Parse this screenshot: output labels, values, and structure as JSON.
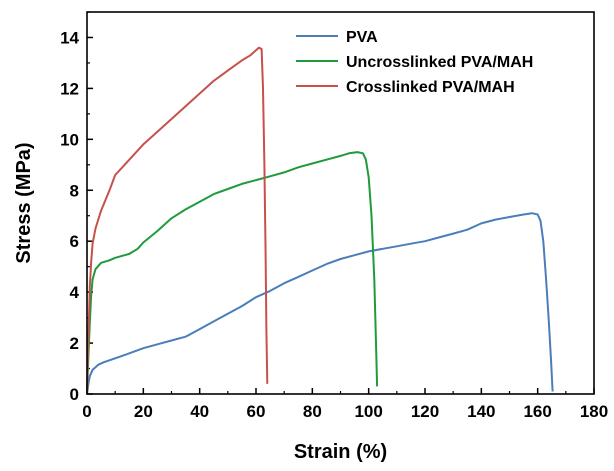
{
  "chart_data": {
    "type": "line",
    "xlabel": "Strain (%)",
    "ylabel": "Stress (MPa)",
    "xlim": [
      0,
      180
    ],
    "ylim": [
      0,
      15
    ],
    "xticks": [
      "0",
      "20",
      "40",
      "60",
      "80",
      "100",
      "120",
      "140",
      "160",
      "180"
    ],
    "yticks": [
      "0",
      "2",
      "4",
      "6",
      "8",
      "10",
      "12",
      "14"
    ],
    "grid": false,
    "legend_position": "top-right",
    "series": [
      {
        "name": "PVA",
        "color": "#4a7ebb",
        "points": [
          [
            0,
            0
          ],
          [
            0.5,
            0.4
          ],
          [
            1,
            0.7
          ],
          [
            2,
            0.95
          ],
          [
            4,
            1.15
          ],
          [
            6,
            1.25
          ],
          [
            10,
            1.4
          ],
          [
            15,
            1.6
          ],
          [
            20,
            1.8
          ],
          [
            25,
            1.95
          ],
          [
            30,
            2.1
          ],
          [
            35,
            2.25
          ],
          [
            40,
            2.55
          ],
          [
            45,
            2.85
          ],
          [
            50,
            3.15
          ],
          [
            55,
            3.45
          ],
          [
            60,
            3.8
          ],
          [
            65,
            4.05
          ],
          [
            70,
            4.35
          ],
          [
            75,
            4.6
          ],
          [
            80,
            4.85
          ],
          [
            85,
            5.1
          ],
          [
            90,
            5.3
          ],
          [
            95,
            5.45
          ],
          [
            100,
            5.6
          ],
          [
            105,
            5.7
          ],
          [
            110,
            5.8
          ],
          [
            115,
            5.9
          ],
          [
            120,
            6.0
          ],
          [
            125,
            6.15
          ],
          [
            130,
            6.3
          ],
          [
            135,
            6.45
          ],
          [
            140,
            6.7
          ],
          [
            145,
            6.85
          ],
          [
            150,
            6.95
          ],
          [
            155,
            7.05
          ],
          [
            158,
            7.1
          ],
          [
            160,
            7.05
          ],
          [
            161,
            6.8
          ],
          [
            162,
            6.0
          ],
          [
            163,
            4.5
          ],
          [
            164,
            2.8
          ],
          [
            164.8,
            1.2
          ],
          [
            165.3,
            0.1
          ]
        ]
      },
      {
        "name": "Uncrosslinked PVA/MAH",
        "color": "#1f9a3c",
        "points": [
          [
            0,
            0
          ],
          [
            0.5,
            1.5
          ],
          [
            1,
            2.8
          ],
          [
            1.5,
            3.9
          ],
          [
            2,
            4.5
          ],
          [
            3,
            4.9
          ],
          [
            5,
            5.15
          ],
          [
            8,
            5.25
          ],
          [
            10,
            5.35
          ],
          [
            15,
            5.5
          ],
          [
            18,
            5.7
          ],
          [
            20,
            5.95
          ],
          [
            25,
            6.4
          ],
          [
            30,
            6.9
          ],
          [
            35,
            7.25
          ],
          [
            40,
            7.55
          ],
          [
            45,
            7.85
          ],
          [
            50,
            8.05
          ],
          [
            55,
            8.25
          ],
          [
            60,
            8.4
          ],
          [
            65,
            8.55
          ],
          [
            70,
            8.7
          ],
          [
            75,
            8.9
          ],
          [
            80,
            9.05
          ],
          [
            85,
            9.2
          ],
          [
            90,
            9.35
          ],
          [
            93,
            9.45
          ],
          [
            96,
            9.5
          ],
          [
            98,
            9.45
          ],
          [
            99,
            9.2
          ],
          [
            100,
            8.5
          ],
          [
            101,
            7.0
          ],
          [
            102,
            4.5
          ],
          [
            102.6,
            2.0
          ],
          [
            103,
            0.3
          ]
        ]
      },
      {
        "name": "Crosslinked PVA/MAH",
        "color": "#c8504b",
        "points": [
          [
            0,
            0
          ],
          [
            0.3,
            1.5
          ],
          [
            0.7,
            3.0
          ],
          [
            1,
            4.2
          ],
          [
            1.5,
            5.2
          ],
          [
            2,
            5.9
          ],
          [
            3,
            6.5
          ],
          [
            5,
            7.2
          ],
          [
            8,
            8.0
          ],
          [
            10,
            8.6
          ],
          [
            15,
            9.2
          ],
          [
            20,
            9.8
          ],
          [
            25,
            10.3
          ],
          [
            30,
            10.8
          ],
          [
            35,
            11.3
          ],
          [
            40,
            11.8
          ],
          [
            45,
            12.3
          ],
          [
            50,
            12.7
          ],
          [
            55,
            13.1
          ],
          [
            58,
            13.3
          ],
          [
            60,
            13.5
          ],
          [
            61,
            13.6
          ],
          [
            62,
            13.55
          ],
          [
            62.5,
            12.0
          ],
          [
            63,
            9.0
          ],
          [
            63.4,
            5.5
          ],
          [
            63.7,
            2.5
          ],
          [
            64,
            0.4
          ]
        ]
      }
    ]
  }
}
